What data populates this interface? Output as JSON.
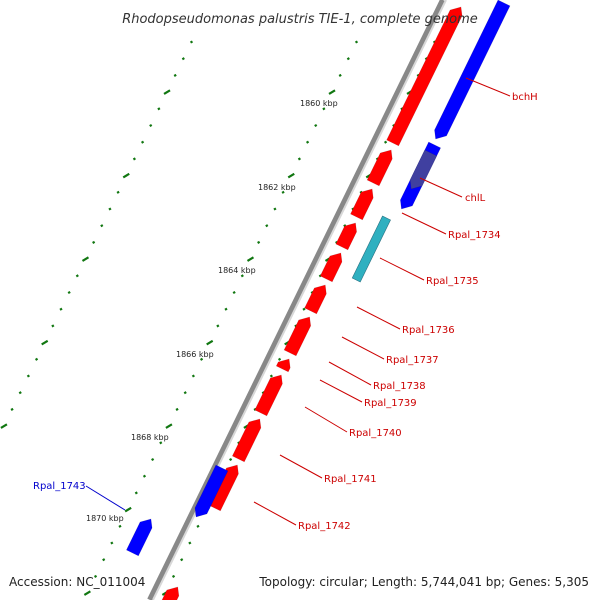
{
  "title": "Rhodopseudomonas palustris TIE-1, complete genome",
  "footer": {
    "accession": "Accession: NC_011004",
    "summary": "Topology: circular; Length: 5,744,041 bp; Genes: 5,305"
  },
  "colors": {
    "forward": "#ff0000",
    "reverse": "#0000ff",
    "label_forward": "#cc0000",
    "label_reverse": "#0000cc",
    "backbone": "#999999",
    "ruler": "#117711",
    "overlap": "#4040a0",
    "rna": "#2fb0c0"
  },
  "ruler": {
    "unit": "kbp",
    "labels": [
      "1860 kbp",
      "1862 kbp",
      "1864 kbp",
      "1866 kbp",
      "1868 kbp",
      "1870 kbp"
    ]
  },
  "gene_labels": [
    {
      "text": "bchH",
      "strand": "forward"
    },
    {
      "text": "chlL",
      "strand": "forward"
    },
    {
      "text": "Rpal_1734",
      "strand": "forward"
    },
    {
      "text": "Rpal_1735",
      "strand": "forward"
    },
    {
      "text": "Rpal_1736",
      "strand": "forward"
    },
    {
      "text": "Rpal_1737",
      "strand": "forward"
    },
    {
      "text": "Rpal_1738",
      "strand": "forward"
    },
    {
      "text": "Rpal_1739",
      "strand": "forward"
    },
    {
      "text": "Rpal_1740",
      "strand": "forward"
    },
    {
      "text": "Rpal_1741",
      "strand": "forward"
    },
    {
      "text": "Rpal_1742",
      "strand": "forward"
    },
    {
      "text": "Rpal_1743",
      "strand": "reverse"
    }
  ]
}
